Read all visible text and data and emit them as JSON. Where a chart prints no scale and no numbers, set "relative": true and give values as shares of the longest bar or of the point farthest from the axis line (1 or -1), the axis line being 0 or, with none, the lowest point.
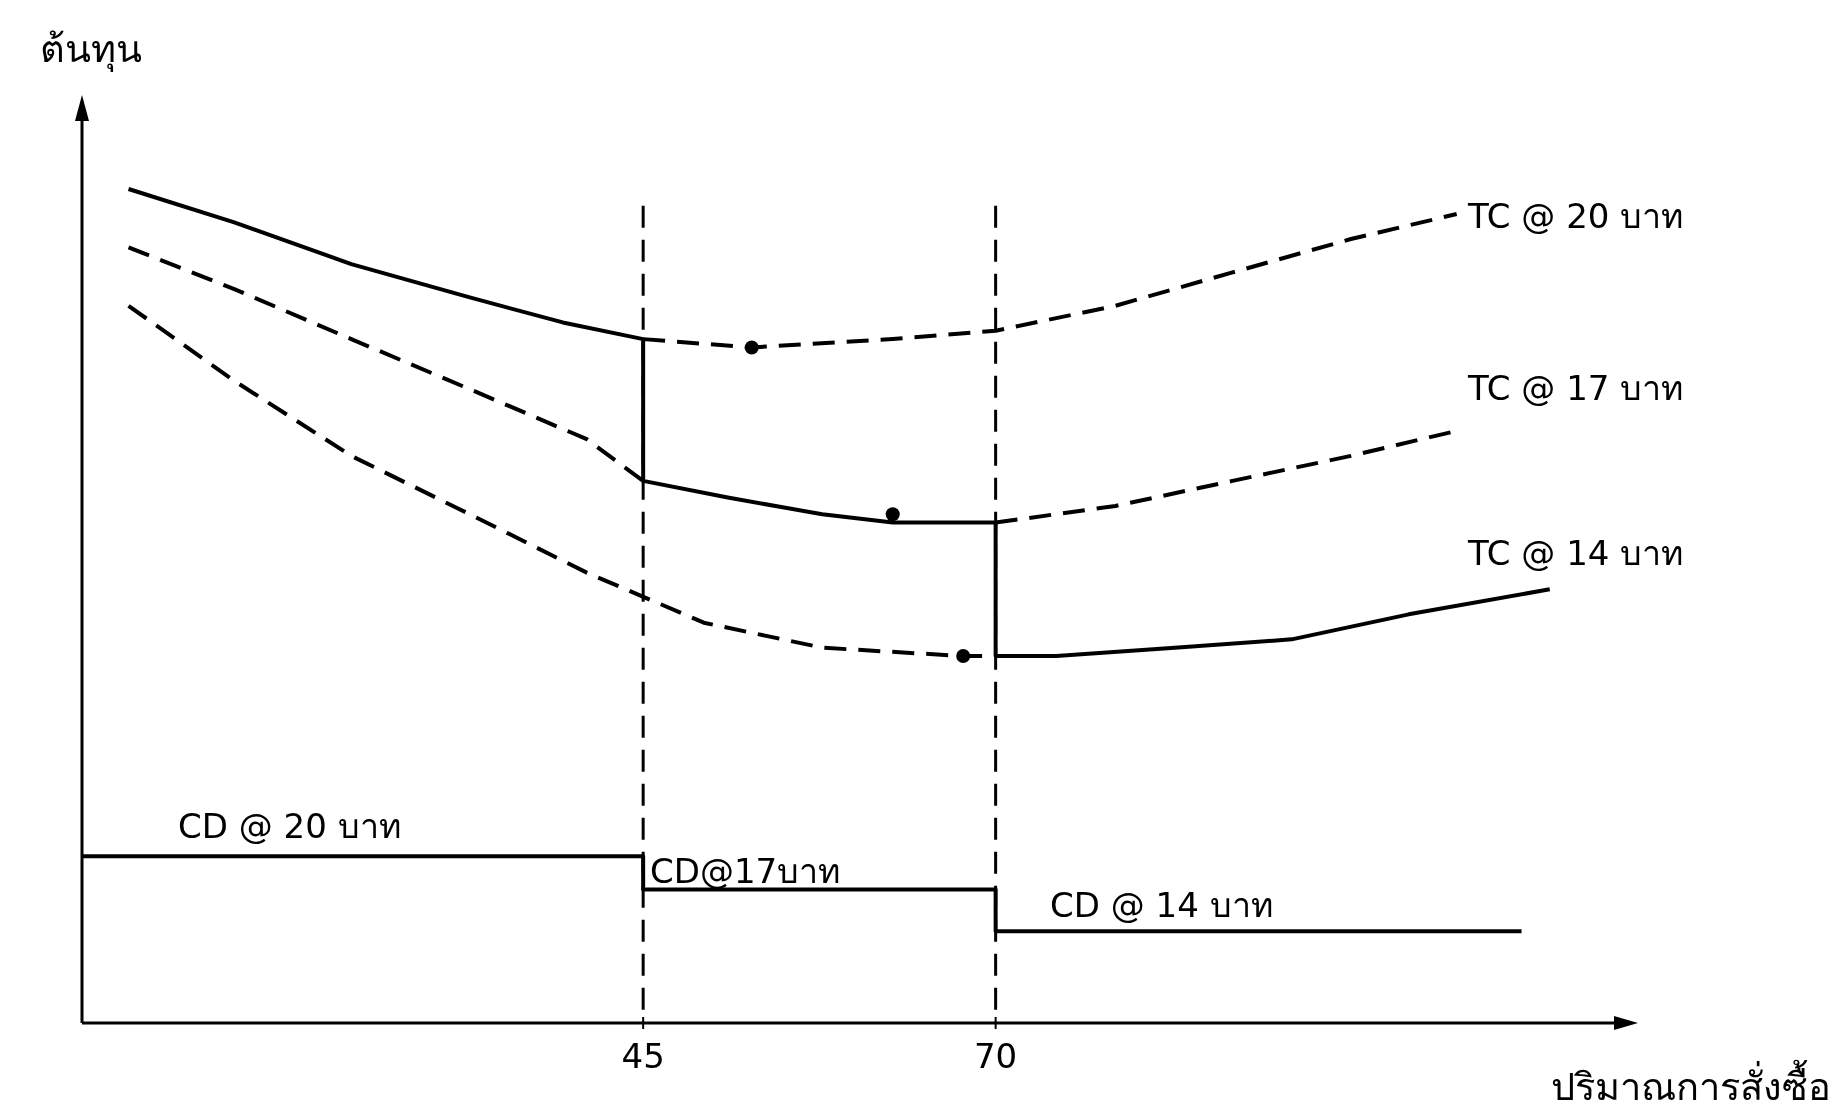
{
  "chart_data": {
    "type": "line",
    "relative": true,
    "xlabel": "ปริมาณการสั่งซื้อ",
    "ylabel": "ต้นทุน",
    "xlim": [
      5.2,
      114
    ],
    "xticks": [
      45,
      70
    ],
    "series": [
      {
        "line_style": "solid",
        "color": "#000000",
        "x": [
          8.5,
          16,
          24.3,
          32.7,
          39.3,
          45,
          45,
          51,
          57.7,
          62.7,
          70,
          70,
          74.3,
          82.7,
          91,
          99.3,
          109.3
        ],
        "values": [
          1.0,
          0.96,
          0.91,
          0.87,
          0.84,
          0.82,
          0.65,
          0.63,
          0.61,
          0.6,
          0.6,
          0.44,
          0.44,
          0.45,
          0.46,
          0.49,
          0.52
        ]
      },
      {
        "line_style": "dashed",
        "color": "#000000",
        "x": [
          45,
          52.7,
          62.7,
          70,
          78.5,
          86.8,
          95.2,
          102.7
        ],
        "values": [
          0.82,
          0.81,
          0.82,
          0.83,
          0.86,
          0.9,
          0.94,
          0.97
        ]
      },
      {
        "line_style": "dashed",
        "color": "#000000",
        "x": [
          8.5,
          16,
          24.3,
          32.7,
          41,
          45
        ],
        "values": [
          0.93,
          0.88,
          0.82,
          0.76,
          0.7,
          0.65
        ]
      },
      {
        "line_style": "dashed",
        "color": "#000000",
        "x": [
          70,
          78.5,
          86.8,
          95.2,
          102.7
        ],
        "values": [
          0.6,
          0.62,
          0.65,
          0.68,
          0.71
        ]
      },
      {
        "line_style": "dashed",
        "color": "#000000",
        "x": [
          8.5,
          16,
          24.3,
          32.7,
          41,
          49.3,
          57.7,
          67.7,
          70
        ],
        "values": [
          0.86,
          0.77,
          0.68,
          0.61,
          0.54,
          0.48,
          0.45,
          0.44,
          0.44
        ]
      },
      {
        "line_style": "solid",
        "color": "#000000",
        "x": [
          5.2,
          45,
          45,
          70,
          70,
          107.3
        ],
        "values": [
          0.2,
          0.2,
          0.16,
          0.16,
          0.11,
          0.11
        ]
      },
      {
        "type": "scatter",
        "marker": "circle",
        "color": "#000000",
        "x": [
          52.7,
          62.7,
          67.7
        ],
        "values": [
          0.81,
          0.61,
          0.44
        ]
      }
    ],
    "ref_lines": [
      {
        "axis": "x",
        "value": 45,
        "line_style": "dashed"
      },
      {
        "axis": "x",
        "value": 70,
        "line_style": "dashed"
      }
    ],
    "annotations": [
      "TC @ 20 บาท",
      "TC @ 17 บาท",
      "TC @ 14 บาท",
      "CD @ 20 บาท",
      "CD@17บาท",
      "CD @ 14 บาท"
    ]
  }
}
